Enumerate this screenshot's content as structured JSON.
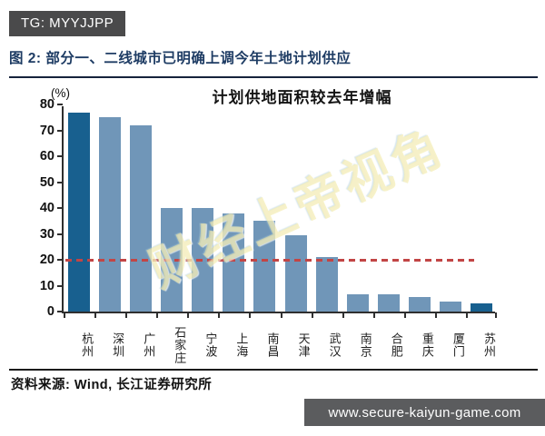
{
  "header": {
    "badge": "TG: MYYJJPP",
    "title": "图 2: 部分一、二线城市已明确上调今年土地计划供应"
  },
  "chart_data": {
    "type": "bar",
    "title": "计划供地面积较去年增幅",
    "unit_label": "(%)",
    "categories": [
      "杭州",
      "深圳",
      "广州",
      "石家庄",
      "宁波",
      "上海",
      "南昌",
      "天津",
      "武汉",
      "南京",
      "合肥",
      "重庆",
      "厦门",
      "苏州"
    ],
    "values": [
      77,
      75,
      72,
      40,
      40,
      38,
      35,
      29.5,
      21,
      6.5,
      6.5,
      5.5,
      4,
      3
    ],
    "ylabel": "",
    "xlabel": "",
    "ylim": [
      0,
      80
    ],
    "ytick_step": 10,
    "grid": false,
    "legend_position": "none",
    "reference_line": {
      "value": 20,
      "style": "dashed"
    },
    "highlight_indices": [
      0,
      13
    ]
  },
  "watermark": {
    "text": "财经上帝视角"
  },
  "footer": {
    "source": "资料来源: Wind, 长江证券研究所",
    "website": "www.secure-kaiyun-game.com"
  },
  "colors": {
    "accent": "#1e3c64",
    "bar": "#7096b8",
    "bar_highlight": "#18608f",
    "reference_line": "#c24545",
    "badge_bg": "#4a4a4b",
    "site_badge_bg": "#5b5c5e",
    "watermark": "rgba(242,233,168,0.78)"
  }
}
